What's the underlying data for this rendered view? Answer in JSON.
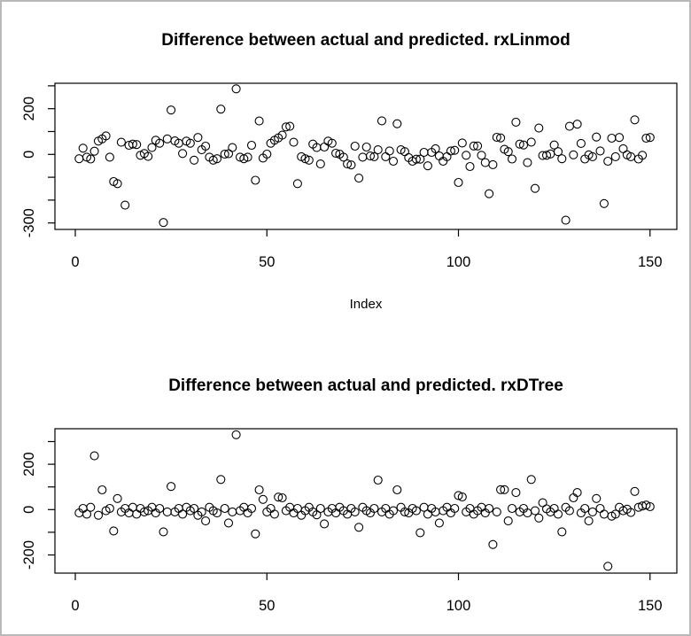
{
  "window": {
    "background": "#ffffff",
    "border_color": "#b9b9b9",
    "marker_color": "#000000"
  },
  "chart_data": [
    {
      "type": "scatter",
      "title": "Difference between actual and predicted. rxLinmod",
      "xlabel": "Index",
      "ylabel": "",
      "marker": "open-circle",
      "grid": false,
      "xlim": [
        -5,
        157
      ],
      "ylim": [
        -328,
        311
      ],
      "x_ticks": {
        "values": [
          0,
          50,
          100,
          150
        ],
        "labels": [
          "0",
          "50",
          "100",
          "150"
        ]
      },
      "y_ticks": {
        "values": [
          300,
          200,
          100,
          0,
          -100,
          -200,
          -300
        ],
        "labels": [
          "",
          "200",
          "",
          "0",
          "",
          "",
          "-300"
        ]
      },
      "points": [
        [
          1,
          -19
        ],
        [
          2,
          27
        ],
        [
          3,
          -12
        ],
        [
          4,
          -20
        ],
        [
          5,
          14
        ],
        [
          6,
          58
        ],
        [
          7,
          68
        ],
        [
          8,
          81
        ],
        [
          9,
          -12
        ],
        [
          10,
          -119
        ],
        [
          11,
          -128
        ],
        [
          12,
          53
        ],
        [
          13,
          -222
        ],
        [
          14,
          40
        ],
        [
          15,
          45
        ],
        [
          16,
          43
        ],
        [
          17,
          -4
        ],
        [
          18,
          4
        ],
        [
          19,
          -9
        ],
        [
          20,
          30
        ],
        [
          21,
          62
        ],
        [
          22,
          49
        ],
        [
          23,
          -298
        ],
        [
          24,
          68
        ],
        [
          25,
          194
        ],
        [
          26,
          59
        ],
        [
          27,
          49
        ],
        [
          28,
          4
        ],
        [
          29,
          58
        ],
        [
          30,
          49
        ],
        [
          31,
          -25
        ],
        [
          32,
          74
        ],
        [
          33,
          20
        ],
        [
          34,
          36
        ],
        [
          35,
          -12
        ],
        [
          36,
          -25
        ],
        [
          37,
          -19
        ],
        [
          38,
          198
        ],
        [
          39,
          1
        ],
        [
          40,
          3
        ],
        [
          41,
          30
        ],
        [
          42,
          287
        ],
        [
          43,
          -12
        ],
        [
          44,
          -19
        ],
        [
          45,
          -12
        ],
        [
          46,
          40
        ],
        [
          47,
          -113
        ],
        [
          48,
          146
        ],
        [
          49,
          -16
        ],
        [
          50,
          1
        ],
        [
          51,
          49
        ],
        [
          52,
          62
        ],
        [
          53,
          72
        ],
        [
          54,
          84
        ],
        [
          55,
          120
        ],
        [
          56,
          123
        ],
        [
          57,
          53
        ],
        [
          58,
          -128
        ],
        [
          59,
          -10
        ],
        [
          60,
          -19
        ],
        [
          61,
          -25
        ],
        [
          62,
          45
        ],
        [
          63,
          30
        ],
        [
          64,
          -42
        ],
        [
          65,
          32
        ],
        [
          66,
          58
        ],
        [
          67,
          49
        ],
        [
          68,
          5
        ],
        [
          69,
          1
        ],
        [
          70,
          -12
        ],
        [
          71,
          -42
        ],
        [
          72,
          -46
        ],
        [
          73,
          36
        ],
        [
          74,
          -104
        ],
        [
          75,
          -12
        ],
        [
          76,
          32
        ],
        [
          77,
          -7
        ],
        [
          78,
          -10
        ],
        [
          79,
          20
        ],
        [
          80,
          147
        ],
        [
          81,
          -10
        ],
        [
          82,
          15
        ],
        [
          83,
          -30
        ],
        [
          84,
          134
        ],
        [
          85,
          20
        ],
        [
          86,
          12
        ],
        [
          87,
          -14
        ],
        [
          88,
          -30
        ],
        [
          89,
          -21
        ],
        [
          90,
          -21
        ],
        [
          91,
          9
        ],
        [
          92,
          -50
        ],
        [
          93,
          9
        ],
        [
          94,
          25
        ],
        [
          95,
          -7
        ],
        [
          96,
          -30
        ],
        [
          97,
          -10
        ],
        [
          98,
          15
        ],
        [
          99,
          18
        ],
        [
          100,
          -123
        ],
        [
          101,
          50
        ],
        [
          102,
          -4
        ],
        [
          103,
          -53
        ],
        [
          104,
          37
        ],
        [
          105,
          37
        ],
        [
          106,
          -4
        ],
        [
          107,
          -36
        ],
        [
          108,
          -172
        ],
        [
          109,
          -45
        ],
        [
          110,
          75
        ],
        [
          111,
          72
        ],
        [
          112,
          22
        ],
        [
          113,
          12
        ],
        [
          114,
          -20
        ],
        [
          115,
          141
        ],
        [
          116,
          45
        ],
        [
          117,
          41
        ],
        [
          118,
          -36
        ],
        [
          119,
          54
        ],
        [
          120,
          -149
        ],
        [
          121,
          115
        ],
        [
          122,
          -5
        ],
        [
          123,
          -4
        ],
        [
          124,
          2
        ],
        [
          125,
          41
        ],
        [
          126,
          12
        ],
        [
          127,
          -19
        ],
        [
          128,
          -288
        ],
        [
          129,
          123
        ],
        [
          130,
          -2
        ],
        [
          131,
          132
        ],
        [
          132,
          48
        ],
        [
          133,
          -20
        ],
        [
          134,
          -2
        ],
        [
          135,
          -10
        ],
        [
          136,
          76
        ],
        [
          137,
          15
        ],
        [
          138,
          -215
        ],
        [
          139,
          -30
        ],
        [
          140,
          71
        ],
        [
          141,
          -10
        ],
        [
          142,
          74
        ],
        [
          143,
          25
        ],
        [
          144,
          -2
        ],
        [
          145,
          -10
        ],
        [
          146,
          151
        ],
        [
          147,
          -20
        ],
        [
          148,
          -4
        ],
        [
          149,
          71
        ],
        [
          150,
          74
        ]
      ]
    },
    {
      "type": "scatter",
      "title": "Difference between actual and predicted. rxDTree",
      "xlabel": "",
      "ylabel": "",
      "marker": "open-circle",
      "grid": false,
      "xlim": [
        -5,
        157
      ],
      "ylim": [
        -280,
        358
      ],
      "x_ticks": {
        "values": [
          0,
          50,
          100,
          150
        ],
        "labels": [
          "0",
          "50",
          "100",
          "150"
        ]
      },
      "y_ticks": {
        "values": [
          300,
          200,
          100,
          0,
          -100,
          -200
        ],
        "labels": [
          "",
          "200",
          "",
          "0",
          "",
          "-200"
        ]
      },
      "points": [
        [
          1,
          -15
        ],
        [
          2,
          5
        ],
        [
          3,
          -20
        ],
        [
          4,
          10
        ],
        [
          5,
          237
        ],
        [
          6,
          -25
        ],
        [
          7,
          87
        ],
        [
          8,
          -5
        ],
        [
          9,
          5
        ],
        [
          10,
          -94
        ],
        [
          11,
          49
        ],
        [
          12,
          -10
        ],
        [
          13,
          5
        ],
        [
          14,
          -15
        ],
        [
          15,
          10
        ],
        [
          16,
          -20
        ],
        [
          17,
          5
        ],
        [
          18,
          -10
        ],
        [
          19,
          -5
        ],
        [
          20,
          10
        ],
        [
          21,
          -15
        ],
        [
          22,
          5
        ],
        [
          23,
          -98
        ],
        [
          24,
          -10
        ],
        [
          25,
          102
        ],
        [
          26,
          -10
        ],
        [
          27,
          5
        ],
        [
          28,
          -20
        ],
        [
          29,
          10
        ],
        [
          30,
          -5
        ],
        [
          31,
          5
        ],
        [
          32,
          -25
        ],
        [
          33,
          -10
        ],
        [
          34,
          -50
        ],
        [
          35,
          10
        ],
        [
          36,
          -5
        ],
        [
          37,
          -15
        ],
        [
          38,
          133
        ],
        [
          39,
          5
        ],
        [
          40,
          -59
        ],
        [
          41,
          -10
        ],
        [
          42,
          330
        ],
        [
          43,
          -5
        ],
        [
          44,
          10
        ],
        [
          45,
          -15
        ],
        [
          46,
          5
        ],
        [
          47,
          -107
        ],
        [
          48,
          87
        ],
        [
          49,
          45
        ],
        [
          50,
          -10
        ],
        [
          51,
          5
        ],
        [
          52,
          -20
        ],
        [
          53,
          55
        ],
        [
          54,
          52
        ],
        [
          55,
          -5
        ],
        [
          56,
          10
        ],
        [
          57,
          -15
        ],
        [
          58,
          5
        ],
        [
          59,
          -25
        ],
        [
          60,
          -5
        ],
        [
          61,
          10
        ],
        [
          62,
          -10
        ],
        [
          63,
          -23
        ],
        [
          64,
          5
        ],
        [
          65,
          -63
        ],
        [
          66,
          -10
        ],
        [
          67,
          5
        ],
        [
          68,
          -15
        ],
        [
          69,
          10
        ],
        [
          70,
          -5
        ],
        [
          71,
          -20
        ],
        [
          72,
          5
        ],
        [
          73,
          -10
        ],
        [
          74,
          -78
        ],
        [
          75,
          10
        ],
        [
          76,
          -5
        ],
        [
          77,
          -15
        ],
        [
          78,
          5
        ],
        [
          79,
          130
        ],
        [
          80,
          -10
        ],
        [
          81,
          5
        ],
        [
          82,
          -20
        ],
        [
          83,
          -5
        ],
        [
          84,
          87
        ],
        [
          85,
          10
        ],
        [
          86,
          -10
        ],
        [
          87,
          -15
        ],
        [
          88,
          5
        ],
        [
          89,
          -5
        ],
        [
          90,
          -102
        ],
        [
          91,
          10
        ],
        [
          92,
          -20
        ],
        [
          93,
          5
        ],
        [
          94,
          -10
        ],
        [
          95,
          -59
        ],
        [
          96,
          -5
        ],
        [
          97,
          10
        ],
        [
          98,
          -15
        ],
        [
          99,
          5
        ],
        [
          100,
          62
        ],
        [
          101,
          56
        ],
        [
          102,
          -10
        ],
        [
          103,
          5
        ],
        [
          104,
          -20
        ],
        [
          105,
          -5
        ],
        [
          106,
          10
        ],
        [
          107,
          -15
        ],
        [
          108,
          5
        ],
        [
          109,
          -154
        ],
        [
          110,
          -10
        ],
        [
          111,
          88
        ],
        [
          112,
          88
        ],
        [
          113,
          -50
        ],
        [
          114,
          5
        ],
        [
          115,
          75
        ],
        [
          116,
          -10
        ],
        [
          117,
          5
        ],
        [
          118,
          -15
        ],
        [
          119,
          133
        ],
        [
          120,
          -5
        ],
        [
          121,
          -37
        ],
        [
          122,
          30
        ],
        [
          123,
          3
        ],
        [
          124,
          -10
        ],
        [
          125,
          5
        ],
        [
          126,
          -20
        ],
        [
          127,
          -98
        ],
        [
          128,
          10
        ],
        [
          129,
          -5
        ],
        [
          130,
          52
        ],
        [
          131,
          75
        ],
        [
          132,
          -15
        ],
        [
          133,
          5
        ],
        [
          134,
          -50
        ],
        [
          135,
          -10
        ],
        [
          136,
          49
        ],
        [
          137,
          5
        ],
        [
          138,
          -20
        ],
        [
          139,
          -250
        ],
        [
          140,
          -29
        ],
        [
          141,
          -20
        ],
        [
          142,
          10
        ],
        [
          143,
          -5
        ],
        [
          144,
          2
        ],
        [
          145,
          -13
        ],
        [
          146,
          80
        ],
        [
          147,
          10
        ],
        [
          148,
          16
        ],
        [
          149,
          20
        ],
        [
          150,
          13
        ]
      ]
    }
  ]
}
